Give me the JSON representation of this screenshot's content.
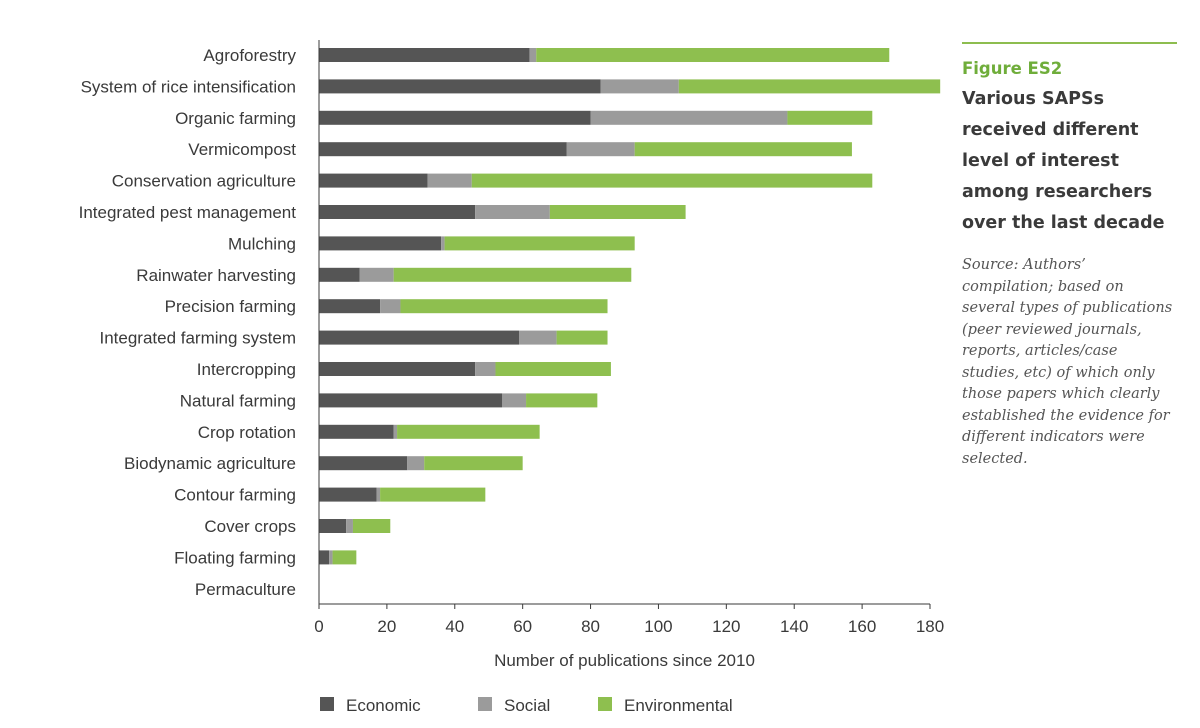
{
  "figure": {
    "label": "Figure ES2",
    "title": "Various SAPSs received different level of interest among researchers over the last decade",
    "source": "Source: Authors’ compilation; based on several types of publications (peer reviewed journals, reports, articles/case studies, etc) of which only those papers which clearly established the evidence for different indicators were selected."
  },
  "colors": {
    "Economic": "#555555",
    "Social": "#9b9b9b",
    "Environmental": "#8ebf4f",
    "accent": "#6fad3a"
  },
  "chart_data": {
    "type": "bar",
    "orientation": "horizontal",
    "stacked": true,
    "categories": [
      "Agroforestry",
      "System of rice intensification",
      "Organic farming",
      "Vermicompost",
      "Conservation agriculture",
      "Integrated pest management",
      "Mulching",
      "Rainwater harvesting",
      "Precision farming",
      "Integrated farming system",
      "Intercropping",
      "Natural farming",
      "Crop rotation",
      "Biodynamic agriculture",
      "Contour farming",
      "Cover crops",
      "Floating farming",
      "Permaculture"
    ],
    "series": [
      {
        "name": "Economic",
        "values": [
          62,
          83,
          80,
          73,
          32,
          46,
          36,
          12,
          18,
          59,
          46,
          54,
          22,
          26,
          17,
          8,
          3,
          0
        ]
      },
      {
        "name": "Social",
        "values": [
          2,
          23,
          58,
          20,
          13,
          22,
          1,
          10,
          6,
          11,
          6,
          7,
          1,
          5,
          1,
          2,
          1,
          0
        ]
      },
      {
        "name": "Environmental",
        "values": [
          104,
          77,
          25,
          64,
          118,
          40,
          56,
          70,
          61,
          15,
          34,
          21,
          42,
          29,
          31,
          11,
          7,
          0
        ]
      }
    ],
    "xlabel": "Number of publications since 2010",
    "ylabel": "",
    "xlim": [
      0,
      180
    ],
    "xticks": [
      0,
      20,
      40,
      60,
      80,
      100,
      120,
      140,
      160,
      180
    ],
    "grid": false,
    "legend": {
      "placement": "bottom",
      "entries": [
        "Economic",
        "Social",
        "Environmental"
      ]
    }
  }
}
